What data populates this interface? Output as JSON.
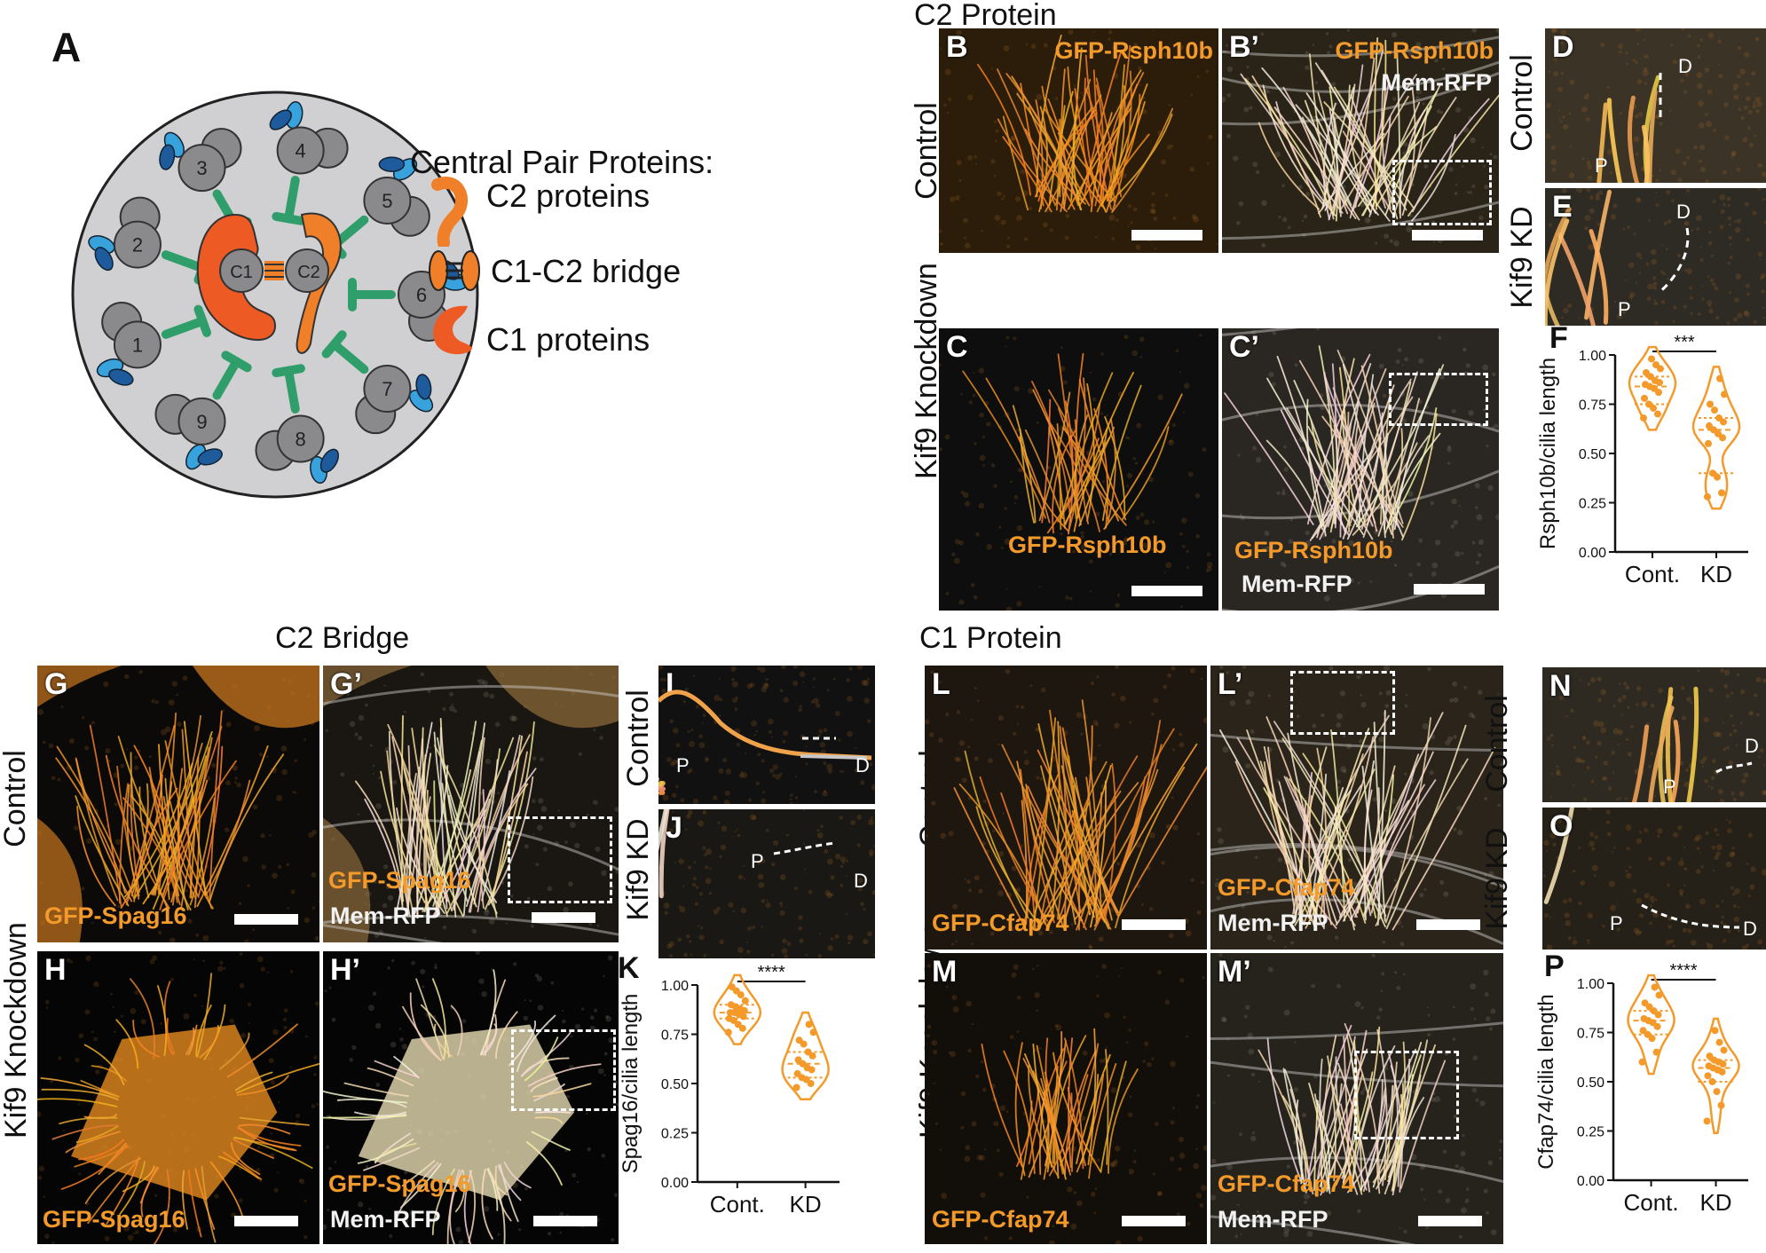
{
  "section_titles": {
    "c2_protein": "C2 Protein",
    "c2_bridge": "C2 Bridge",
    "c1_protein": "C1 Protein"
  },
  "row_labels": {
    "control": "Control",
    "kif9_knockdown": "Kif9 Knockdown",
    "kif9_kd": "Kif9 KD"
  },
  "panel_letters": {
    "A": "A",
    "B": "B",
    "B2": "B’",
    "C": "C",
    "C2": "C’",
    "D": "D",
    "E": "E",
    "F": "F",
    "G": "G",
    "G2": "G’",
    "H": "H",
    "H2": "H’",
    "I": "I",
    "J": "J",
    "K": "K",
    "L": "L",
    "L2": "L’",
    "M": "M",
    "M2": "M’",
    "N": "N",
    "O": "O",
    "P": "P"
  },
  "markers": {
    "rsph10b": "GFP-Rsph10b",
    "spag16": "GFP-Spag16",
    "cfap74": "GFP-Cfap74",
    "mem_rfp": "Mem-RFP",
    "proximal": "P",
    "distal": "D"
  },
  "diagram": {
    "doublet_numbers": [
      "1",
      "2",
      "3",
      "4",
      "5",
      "6",
      "7",
      "8",
      "9"
    ],
    "c1": "C1",
    "c2": "C2",
    "legend_title": "Central Pair Proteins:",
    "legend_items": [
      "C2 proteins",
      "C1-C2 bridge",
      "C1 proteins"
    ],
    "colors": {
      "outer_circle": "#d0d0d2",
      "doublet": "#8a8a8c",
      "dynein_dark": "#1d5b9c",
      "dynein_light": "#37a2dc",
      "radial_spoke": "#2f9e6a",
      "c2_orange": "#f07f2a",
      "c1_orange": "#ee5a24"
    }
  },
  "chart_data": [
    {
      "panel": "F",
      "type": "violin",
      "ylabel": "Rsph10b/cilia length",
      "categories": [
        "Cont.",
        "KD"
      ],
      "yticks": [
        "0.00",
        "0.25",
        "0.50",
        "0.75",
        "1.00"
      ],
      "ylim": [
        0,
        1
      ],
      "significance": "***",
      "series": [
        {
          "values": [
            0.98,
            0.95,
            0.93,
            0.91,
            0.89,
            0.87,
            0.86,
            0.85,
            0.84,
            0.83,
            0.81,
            0.78,
            0.75,
            0.73,
            0.7,
            0.68
          ]
        },
        {
          "values": [
            0.88,
            0.8,
            0.75,
            0.72,
            0.68,
            0.66,
            0.64,
            0.62,
            0.6,
            0.58,
            0.55,
            0.4,
            0.38,
            0.3,
            0.28
          ]
        }
      ],
      "color": "#f39a2a"
    },
    {
      "panel": "K",
      "type": "violin",
      "ylabel": "Spag16/cilia length",
      "categories": [
        "Cont.",
        "KD"
      ],
      "yticks": [
        "0.00",
        "0.25",
        "0.50",
        "0.75",
        "1.00"
      ],
      "ylim": [
        0,
        1
      ],
      "significance": "****",
      "series": [
        {
          "values": [
            0.99,
            0.97,
            0.95,
            0.92,
            0.9,
            0.89,
            0.88,
            0.87,
            0.86,
            0.86,
            0.85,
            0.84,
            0.83,
            0.82,
            0.8,
            0.78,
            0.76
          ]
        },
        {
          "values": [
            0.8,
            0.76,
            0.72,
            0.7,
            0.66,
            0.64,
            0.62,
            0.6,
            0.58,
            0.57,
            0.55,
            0.53,
            0.52,
            0.5,
            0.48
          ]
        }
      ],
      "color": "#f39a2a"
    },
    {
      "panel": "P",
      "type": "violin",
      "ylabel": "Cfap74/cilia length",
      "categories": [
        "Cont.",
        "KD"
      ],
      "yticks": [
        "0.00",
        "0.25",
        "0.50",
        "0.75",
        "1.00"
      ],
      "ylim": [
        0,
        1
      ],
      "significance": "****",
      "series": [
        {
          "values": [
            0.98,
            0.94,
            0.9,
            0.88,
            0.86,
            0.84,
            0.82,
            0.81,
            0.8,
            0.78,
            0.76,
            0.74,
            0.72,
            0.65,
            0.6
          ]
        },
        {
          "values": [
            0.76,
            0.7,
            0.66,
            0.63,
            0.61,
            0.6,
            0.59,
            0.58,
            0.57,
            0.56,
            0.55,
            0.53,
            0.5,
            0.45,
            0.38,
            0.3
          ]
        }
      ],
      "color": "#f39a2a"
    }
  ]
}
